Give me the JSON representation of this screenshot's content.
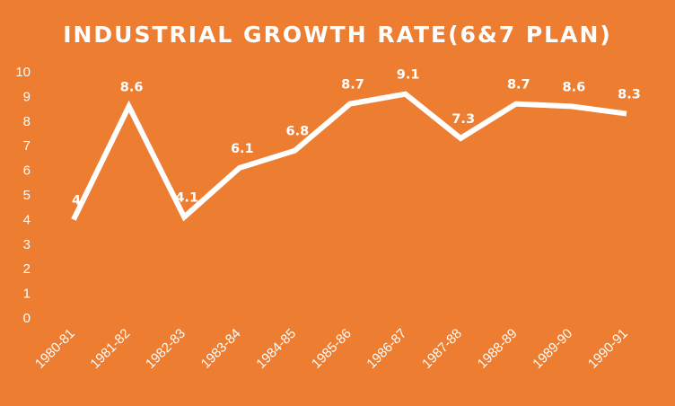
{
  "chart_data": {
    "type": "line",
    "title": "INDUSTRIAL GROWTH RATE(6&7 PLAN)",
    "categories": [
      "1980-81",
      "1981-82",
      "1982-83",
      "1983-84",
      "1984-85",
      "1985-86",
      "1986-87",
      "1987-88",
      "1988-89",
      "1989-90",
      "1990-91"
    ],
    "series": [
      {
        "values": [
          4,
          8.6,
          4.1,
          6.1,
          6.8,
          8.7,
          9.1,
          7.3,
          8.7,
          8.6,
          8.3
        ],
        "labels": [
          "4",
          "8.6",
          "4.1",
          "6.1",
          "6.8",
          "8.7",
          "9.1",
          "7.3",
          "8.7",
          "8.6",
          "8.3"
        ]
      }
    ],
    "yticks": [
      "0",
      "1",
      "2",
      "3",
      "4",
      "5",
      "6",
      "7",
      "8",
      "9",
      "10"
    ],
    "ylim": [
      0,
      10
    ],
    "drop_lines": true,
    "gridlines": false,
    "legend": "none",
    "xlabel": "",
    "ylabel": ""
  },
  "colors": {
    "background": "#ed7d31",
    "line": "#ffffff",
    "text": "#ffffff"
  }
}
